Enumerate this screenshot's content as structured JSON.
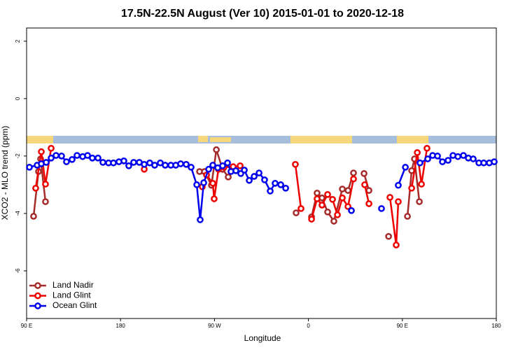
{
  "chart_data": {
    "type": "line",
    "title": "17.5N-22.5N August (Ver 10)   2015-01-01 to 2020-12-18",
    "xlabel": "Longitude",
    "ylabel": "XCO2 - MLO trend (ppm)",
    "xlim": [
      90,
      540
    ],
    "xticks": [
      {
        "value": 90,
        "label": "90 E"
      },
      180,
      {
        "value": 270,
        "label": "90 W"
      },
      {
        "value": 360,
        "label": "0"
      },
      {
        "value": 450,
        "label": "90 E"
      },
      {
        "value": 540,
        "label": "180"
      }
    ],
    "ylim": [
      -7.66,
      2.46
    ],
    "yticks": [
      2,
      0,
      -2,
      -4,
      -6
    ],
    "legend": "bottom-left",
    "series": [
      {
        "name": "Land Nadir",
        "color": "#a52a2a",
        "x": [
          96.7,
          101.4,
          103.4,
          108.1,
          null,
          255.7,
          260.4,
          267.1,
          271.8,
          277.8,
          283.2,
          287.9,
          null,
          348.2,
          null,
          363.0,
          368.3,
          373.0,
          378.4,
          384.4,
          392.5,
          397.9,
          403.2,
          null,
          413.3,
          418.0,
          null,
          436.8,
          null,
          454.9,
          458.9,
          461.6,
          466.3
        ],
        "values": [
          -4.1,
          -2.54,
          -2.1,
          -3.59,
          null,
          -2.54,
          -2.54,
          -3.02,
          -1.78,
          -2.46,
          -2.73,
          -2.41,
          null,
          -3.98,
          null,
          -4.12,
          -3.29,
          -3.46,
          -3.95,
          -4.27,
          -3.15,
          -3.2,
          -2.59,
          null,
          -2.61,
          -3.2,
          null,
          -4.8,
          null,
          -4.1,
          -2.51,
          -2.1,
          -3.59
        ]
      },
      {
        "name": "Land Glint",
        "color": "#ee0000",
        "x": [
          98.7,
          104.1,
          108.1,
          113.5,
          null,
          202.7,
          null,
          258.3,
          262.4,
          268.4,
          269.7,
          273.8,
          279.1,
          287.9,
          294.6,
          null,
          347.5,
          352.9,
          null,
          363.0,
          368.3,
          373.0,
          378.4,
          383.1,
          387.8,
          392.5,
          397.9,
          403.2,
          null,
          413.9,
          418.0,
          null,
          438.1,
          444.1,
          446.1,
          null,
          458.9,
          464.3,
          468.3,
          473.6
        ],
        "values": [
          -3.12,
          -1.85,
          -2.98,
          -1.73,
          null,
          -2.46,
          null,
          -3.07,
          -2.66,
          -2.95,
          -3.49,
          -2.46,
          -2.39,
          -2.37,
          -2.34,
          null,
          -2.29,
          -3.83,
          null,
          -4.2,
          -3.49,
          -3.71,
          -3.34,
          -3.51,
          -4.05,
          -3.46,
          -3.76,
          -2.8,
          null,
          -3.0,
          -3.66,
          null,
          -3.44,
          -5.1,
          -3.59,
          null,
          -3.12,
          -1.88,
          -2.98,
          -1.73
        ]
      },
      {
        "name": "Ocean Glint",
        "color": "#0000ee",
        "x": [
          92.7,
          100.1,
          104.1,
          108.8,
          113.5,
          118.2,
          123.5,
          128.2,
          133.6,
          138.3,
          143.7,
          148.4,
          153.0,
          158.4,
          163.1,
          168.5,
          173.2,
          178.5,
          183.2,
          187.9,
          192.6,
          198.0,
          202.7,
          208.0,
          212.7,
          218.1,
          222.8,
          228.2,
          232.9,
          237.6,
          242.9,
          247.6,
          253.0,
          256.3,
          259.7,
          264.4,
          268.4,
          273.1,
          277.8,
          282.5,
          285.8,
          290.5,
          295.2,
          298.6,
          303.3,
          308.0,
          312.7,
          318.0,
          323.4,
          328.1,
          333.5,
          338.2,
          null,
          401.2,
          null,
          430.0,
          null,
          446.1,
          452.9,
          null,
          466.9,
          474.3,
          479.0,
          483.7,
          488.4,
          493.8,
          498.5,
          503.2,
          508.5,
          513.2,
          517.9,
          523.3,
          528.0,
          533.3,
          538.0
        ],
        "values": [
          -2.39,
          -2.32,
          -2.27,
          -2.22,
          -2.07,
          -1.98,
          -2.0,
          -2.2,
          -2.12,
          -1.98,
          -2.02,
          -1.98,
          -2.07,
          -2.07,
          -2.22,
          -2.24,
          -2.24,
          -2.2,
          -2.17,
          -2.34,
          -2.22,
          -2.22,
          -2.29,
          -2.24,
          -2.32,
          -2.24,
          -2.32,
          -2.32,
          -2.32,
          -2.27,
          -2.29,
          -2.39,
          -3.0,
          -4.22,
          -2.93,
          -2.46,
          -2.32,
          -2.41,
          -2.34,
          -2.24,
          -2.54,
          -2.51,
          -2.61,
          -2.49,
          -2.85,
          -2.71,
          -2.59,
          -2.83,
          -3.22,
          -2.95,
          -3.0,
          -3.12,
          null,
          -3.9,
          null,
          -3.83,
          null,
          -3.02,
          -2.39,
          null,
          -2.24,
          -2.1,
          -1.98,
          -2.0,
          -2.2,
          -2.15,
          -1.98,
          -2.02,
          -1.98,
          -2.07,
          -2.1,
          -2.24,
          -2.24,
          -2.24,
          -2.2
        ]
      }
    ]
  }
}
